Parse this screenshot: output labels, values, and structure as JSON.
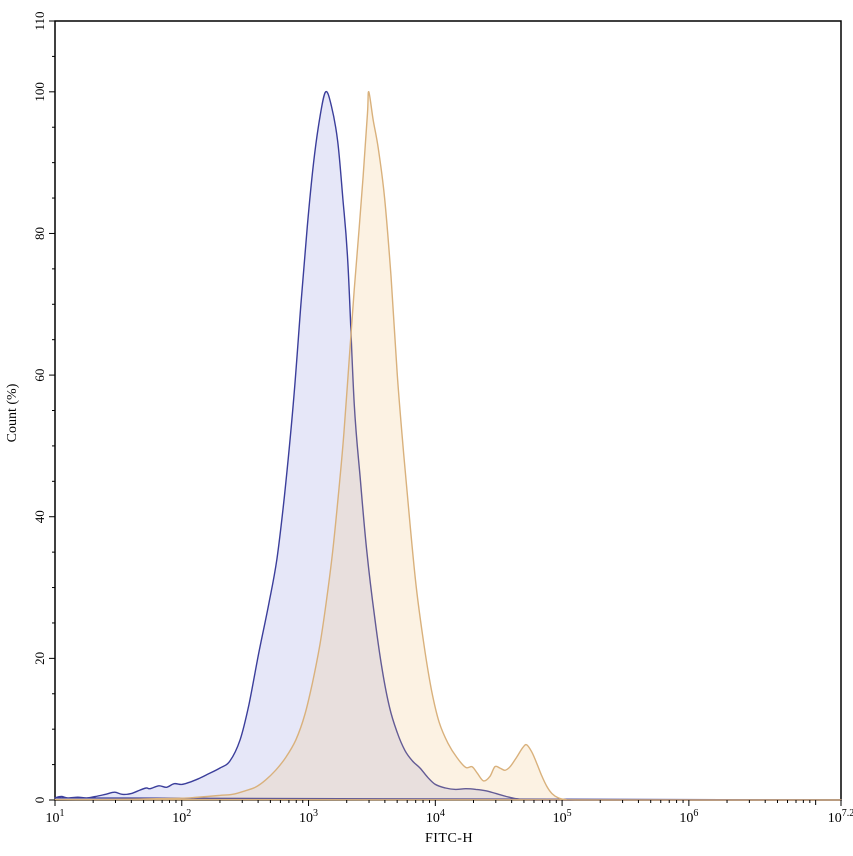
{
  "chart_data": {
    "type": "area",
    "subtype": "flow-cytometry-histogram-overlay",
    "title": "",
    "xlabel": "FITC-H",
    "ylabel": "Count (%)",
    "x_scale": "log10",
    "x_range_exp": [
      1.0,
      7.2
    ],
    "ylim": [
      0,
      110
    ],
    "grid": false,
    "legend": "none",
    "frame": "full-box",
    "colors": {
      "frame": "#000000",
      "tick": "#000000",
      "label": "#000000",
      "background": "#ffffff",
      "blue_stroke": "#3b3e9b",
      "blue_fill": "rgba(100,106,210,0.16)",
      "orange_stroke": "#d9b17c",
      "orange_fill": "rgba(240,196,126,0.22)"
    },
    "x_axis": {
      "title": "FITC-H",
      "base_text": "10",
      "labeled_exps": [
        1,
        2,
        3,
        4,
        5,
        6,
        7.2
      ],
      "labeled_exp_texts": [
        "1",
        "2",
        "3",
        "4",
        "5",
        "6",
        "7.2"
      ],
      "medium_exps": [
        7
      ],
      "minor_decades_from": 1,
      "minor_decades_to": 6
    },
    "y_axis": {
      "title": "Count (%)",
      "min": 0,
      "max": 110,
      "labeled": [
        0,
        20,
        40,
        60,
        80,
        100,
        110
      ],
      "minor_step": 5
    },
    "series": [
      {
        "name": "blue",
        "stroke": "#3b3e9b",
        "fill": "rgba(100,106,210,0.16)",
        "points_log10x_pct": [
          [
            1.0,
            0.3
          ],
          [
            1.05,
            0.5
          ],
          [
            1.1,
            0.3
          ],
          [
            1.18,
            0.4
          ],
          [
            1.25,
            0.3
          ],
          [
            1.32,
            0.5
          ],
          [
            1.4,
            0.8
          ],
          [
            1.47,
            1.1
          ],
          [
            1.53,
            0.8
          ],
          [
            1.6,
            0.9
          ],
          [
            1.67,
            1.4
          ],
          [
            1.72,
            1.7
          ],
          [
            1.75,
            1.6
          ],
          [
            1.82,
            2.0
          ],
          [
            1.88,
            1.8
          ],
          [
            1.94,
            2.3
          ],
          [
            2.0,
            2.2
          ],
          [
            2.06,
            2.5
          ],
          [
            2.13,
            3.0
          ],
          [
            2.2,
            3.6
          ],
          [
            2.3,
            4.5
          ],
          [
            2.38,
            5.5
          ],
          [
            2.46,
            8.5
          ],
          [
            2.53,
            13.5
          ],
          [
            2.61,
            21.0
          ],
          [
            2.69,
            28.0
          ],
          [
            2.75,
            34.0
          ],
          [
            2.81,
            43.0
          ],
          [
            2.88,
            56.0
          ],
          [
            2.94,
            70.0
          ],
          [
            2.99,
            81.0
          ],
          [
            3.04,
            90.0
          ],
          [
            3.09,
            96.5
          ],
          [
            3.135,
            100.0
          ],
          [
            3.18,
            98.0
          ],
          [
            3.23,
            93.0
          ],
          [
            3.27,
            85.0
          ],
          [
            3.31,
            76.0
          ],
          [
            3.36,
            56.0
          ],
          [
            3.41,
            45.0
          ],
          [
            3.46,
            35.0
          ],
          [
            3.52,
            26.0
          ],
          [
            3.58,
            18.5
          ],
          [
            3.64,
            13.0
          ],
          [
            3.7,
            9.5
          ],
          [
            3.76,
            7.0
          ],
          [
            3.82,
            5.5
          ],
          [
            3.88,
            4.5
          ],
          [
            3.94,
            3.2
          ],
          [
            4.0,
            2.2
          ],
          [
            4.08,
            1.7
          ],
          [
            4.16,
            1.5
          ],
          [
            4.24,
            1.6
          ],
          [
            4.32,
            1.5
          ],
          [
            4.4,
            1.3
          ],
          [
            4.48,
            0.9
          ],
          [
            4.56,
            0.5
          ],
          [
            4.63,
            0.2
          ],
          [
            4.7,
            0.05
          ],
          [
            4.8,
            0.0
          ],
          [
            5.5,
            0.0
          ],
          [
            6.5,
            0.0
          ],
          [
            7.2,
            0.0
          ]
        ]
      },
      {
        "name": "orange",
        "stroke": "#d9b17c",
        "fill": "rgba(240,196,126,0.22)",
        "points_log10x_pct": [
          [
            1.0,
            0.05
          ],
          [
            1.3,
            0.05
          ],
          [
            1.5,
            0.1
          ],
          [
            1.7,
            0.15
          ],
          [
            1.85,
            0.2
          ],
          [
            2.0,
            0.25
          ],
          [
            2.1,
            0.35
          ],
          [
            2.2,
            0.5
          ],
          [
            2.3,
            0.65
          ],
          [
            2.4,
            0.8
          ],
          [
            2.5,
            1.3
          ],
          [
            2.58,
            1.8
          ],
          [
            2.66,
            2.8
          ],
          [
            2.74,
            4.2
          ],
          [
            2.82,
            6.0
          ],
          [
            2.9,
            8.5
          ],
          [
            2.97,
            12.0
          ],
          [
            3.03,
            16.5
          ],
          [
            3.09,
            22.0
          ],
          [
            3.14,
            28.0
          ],
          [
            3.19,
            35.0
          ],
          [
            3.24,
            44.0
          ],
          [
            3.28,
            52.0
          ],
          [
            3.32,
            62.0
          ],
          [
            3.36,
            72.0
          ],
          [
            3.4,
            81.0
          ],
          [
            3.43,
            88.0
          ],
          [
            3.465,
            97.0
          ],
          [
            3.475,
            100.0
          ],
          [
            3.51,
            96.0
          ],
          [
            3.55,
            92.0
          ],
          [
            3.6,
            85.0
          ],
          [
            3.65,
            74.0
          ],
          [
            3.7,
            60.0
          ],
          [
            3.75,
            49.0
          ],
          [
            3.8,
            39.0
          ],
          [
            3.85,
            30.0
          ],
          [
            3.91,
            22.0
          ],
          [
            3.97,
            15.5
          ],
          [
            4.03,
            11.0
          ],
          [
            4.1,
            8.0
          ],
          [
            4.17,
            6.0
          ],
          [
            4.24,
            4.6
          ],
          [
            4.29,
            4.7
          ],
          [
            4.33,
            3.8
          ],
          [
            4.38,
            2.7
          ],
          [
            4.43,
            3.3
          ],
          [
            4.47,
            4.7
          ],
          [
            4.51,
            4.5
          ],
          [
            4.55,
            4.2
          ],
          [
            4.59,
            4.7
          ],
          [
            4.64,
            6.0
          ],
          [
            4.69,
            7.4
          ],
          [
            4.72,
            7.8
          ],
          [
            4.76,
            6.8
          ],
          [
            4.8,
            5.2
          ],
          [
            4.84,
            3.4
          ],
          [
            4.88,
            1.9
          ],
          [
            4.92,
            0.9
          ],
          [
            4.97,
            0.3
          ],
          [
            5.03,
            0.05
          ],
          [
            5.1,
            0.0
          ],
          [
            6.0,
            0.0
          ],
          [
            7.2,
            0.0
          ]
        ]
      }
    ]
  }
}
